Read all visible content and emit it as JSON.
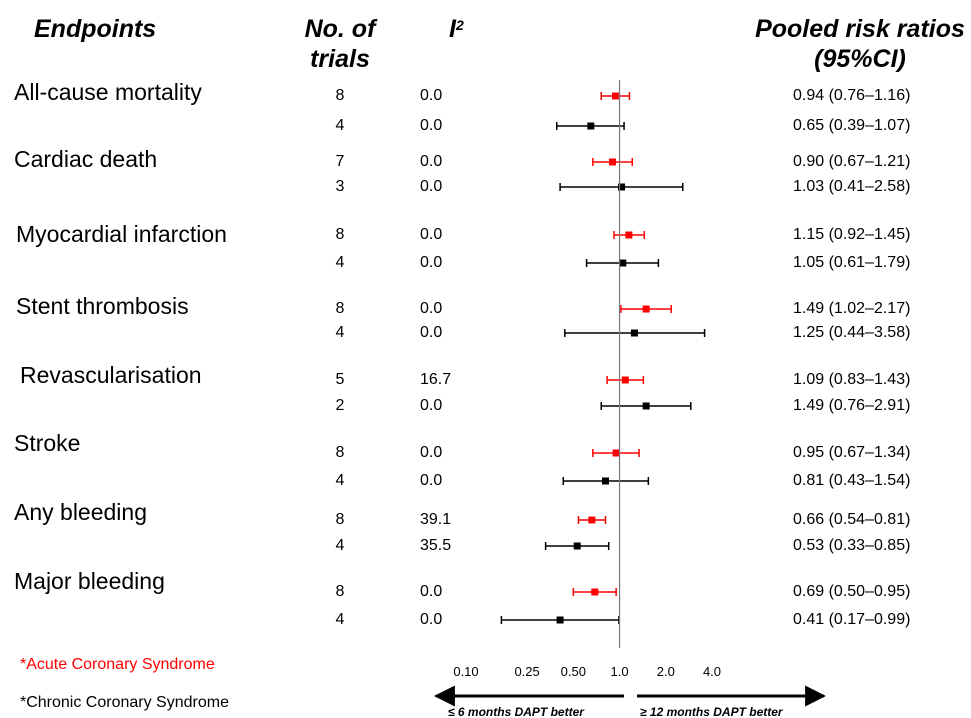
{
  "headers": {
    "endpoints": "Endpoints",
    "trials_line1": "No. of",
    "trials_line2": "trials",
    "i2_letter": "I",
    "i2_sup": "2",
    "rr_line1": "Pooled risk ratios",
    "rr_line2": "(95%CI)"
  },
  "legend": {
    "acs": "*Acute Coronary Syndrome",
    "ccs": "*Chronic Coronary Syndrome",
    "acs_color": "#ff0000",
    "ccs_color": "#000000"
  },
  "direction": {
    "left": "≤ 6 months DAPT better",
    "right": "≥ 12 months DAPT better"
  },
  "chart_data": {
    "type": "forest",
    "x_scale": "log",
    "xlim": [
      0.1,
      4.0
    ],
    "reference_line": 1.0,
    "ticks": [
      0.1,
      0.25,
      0.5,
      1.0,
      2.0,
      4.0
    ],
    "tick_labels": [
      "0.10",
      "0.25",
      "0.50",
      "1.0",
      "2.0",
      "4.0"
    ],
    "series": [
      {
        "name": "*Acute Coronary Syndrome",
        "color": "#ff0000"
      },
      {
        "name": "*Chronic Coronary Syndrome",
        "color": "#000000"
      }
    ],
    "endpoints": [
      {
        "name": "All-cause mortality",
        "rows": [
          {
            "group": "acs",
            "trials": "8",
            "i2": "0.0",
            "rr": 0.94,
            "lo": 0.76,
            "hi": 1.16,
            "label": "0.94 (0.76–1.16)"
          },
          {
            "group": "ccs",
            "trials": "4",
            "i2": "0.0",
            "rr": 0.65,
            "lo": 0.39,
            "hi": 1.07,
            "label": "0.65 (0.39–1.07)"
          }
        ]
      },
      {
        "name": "Cardiac death",
        "rows": [
          {
            "group": "acs",
            "trials": "7",
            "i2": "0.0",
            "rr": 0.9,
            "lo": 0.67,
            "hi": 1.21,
            "label": "0.90 (0.67–1.21)"
          },
          {
            "group": "ccs",
            "trials": "3",
            "i2": "0.0",
            "rr": 1.03,
            "lo": 0.41,
            "hi": 2.58,
            "label": "1.03 (0.41–2.58)"
          }
        ]
      },
      {
        "name": "Myocardial infarction",
        "rows": [
          {
            "group": "acs",
            "trials": "8",
            "i2": "0.0",
            "rr": 1.15,
            "lo": 0.92,
            "hi": 1.45,
            "label": "1.15 (0.92–1.45)"
          },
          {
            "group": "ccs",
            "trials": "4",
            "i2": "0.0",
            "rr": 1.05,
            "lo": 0.61,
            "hi": 1.79,
            "label": "1.05 (0.61–1.79)"
          }
        ]
      },
      {
        "name": "Stent thrombosis",
        "rows": [
          {
            "group": "acs",
            "trials": "8",
            "i2": "0.0",
            "rr": 1.49,
            "lo": 1.02,
            "hi": 2.17,
            "label": "1.49 (1.02–2.17)"
          },
          {
            "group": "ccs",
            "trials": "4",
            "i2": "0.0",
            "rr": 1.25,
            "lo": 0.44,
            "hi": 3.58,
            "label": "1.25 (0.44–3.58)"
          }
        ]
      },
      {
        "name": "Revascularisation",
        "rows": [
          {
            "group": "acs",
            "trials": "5",
            "i2": "16.7",
            "rr": 1.09,
            "lo": 0.83,
            "hi": 1.43,
            "label": "1.09 (0.83–1.43)"
          },
          {
            "group": "ccs",
            "trials": "2",
            "i2": "0.0",
            "rr": 1.49,
            "lo": 0.76,
            "hi": 2.91,
            "label": "1.49 (0.76–2.91)"
          }
        ]
      },
      {
        "name": "Stroke",
        "rows": [
          {
            "group": "acs",
            "trials": "8",
            "i2": "0.0",
            "rr": 0.95,
            "lo": 0.67,
            "hi": 1.34,
            "label": "0.95 (0.67–1.34)"
          },
          {
            "group": "ccs",
            "trials": "4",
            "i2": "0.0",
            "rr": 0.81,
            "lo": 0.43,
            "hi": 1.54,
            "label": "0.81 (0.43–1.54)"
          }
        ]
      },
      {
        "name": "Any bleeding",
        "rows": [
          {
            "group": "acs",
            "trials": "8",
            "i2": "39.1",
            "rr": 0.66,
            "lo": 0.54,
            "hi": 0.81,
            "label": "0.66 (0.54–0.81)"
          },
          {
            "group": "ccs",
            "trials": "4",
            "i2": "35.5",
            "rr": 0.53,
            "lo": 0.33,
            "hi": 0.85,
            "label": "0.53 (0.33–0.85)"
          }
        ]
      },
      {
        "name": "Major bleeding",
        "rows": [
          {
            "group": "acs",
            "trials": "8",
            "i2": "0.0",
            "rr": 0.69,
            "lo": 0.5,
            "hi": 0.95,
            "label": "0.69 (0.50–0.95)"
          },
          {
            "group": "ccs",
            "trials": "4",
            "i2": "0.0",
            "rr": 0.41,
            "lo": 0.17,
            "hi": 0.99,
            "label": "0.41 (0.17–0.99)"
          }
        ]
      }
    ]
  }
}
